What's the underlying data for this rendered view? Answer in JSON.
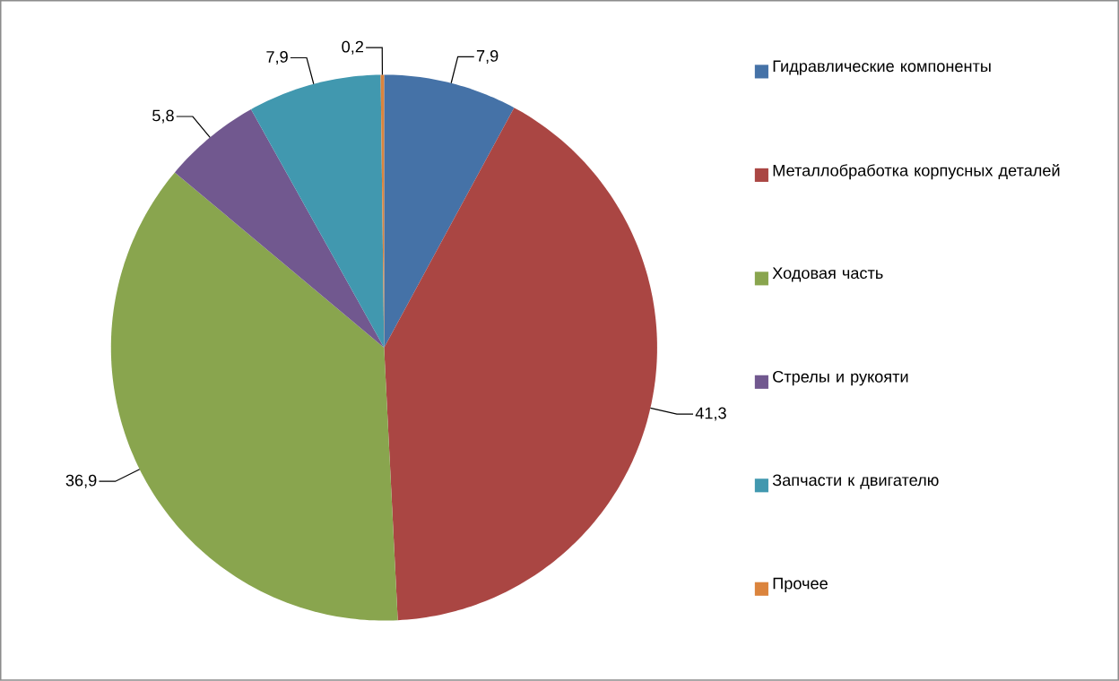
{
  "chart_data": {
    "type": "pie",
    "categories": [
      "Гидравлические компоненты",
      "Металлобработка корпусных деталей",
      "Ходовая часть",
      "Стрелы и рукояти",
      "Запчасти к двигателю",
      "Прочее"
    ],
    "values": [
      7.9,
      41.3,
      36.9,
      5.8,
      7.9,
      0.2
    ],
    "value_labels": [
      "7,9",
      "41,3",
      "36,9",
      "5,8",
      "7,9",
      "0,2"
    ],
    "colors": [
      "#4572a7",
      "#aa4643",
      "#89a54e",
      "#71588f",
      "#4198af",
      "#db843d"
    ],
    "legend": "right"
  }
}
